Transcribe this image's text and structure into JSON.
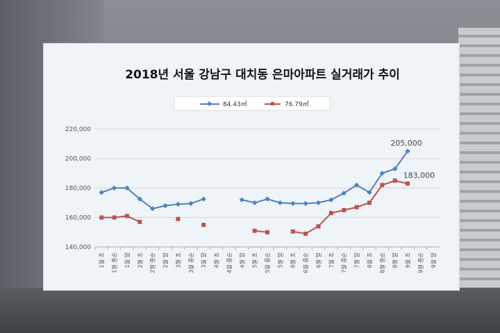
{
  "chart_data": {
    "type": "line",
    "title": "2018년 서울 강남구 대치동 은마아파트 실거래가 추이",
    "xlabel": "",
    "ylabel": "",
    "ylim": [
      140000,
      220000
    ],
    "yticks": [
      "140,000",
      "160,000",
      "180,000",
      "200,000",
      "220,000"
    ],
    "grid": true,
    "legend_position": "top",
    "categories": [
      "1월 초",
      "1월 중순",
      "1월 말",
      "2월 초",
      "2월 중순",
      "2월 말",
      "3월 초",
      "3월 중순",
      "3월 말",
      "4월 초",
      "4월 중순",
      "4월 말",
      "5월 초",
      "5월 중순",
      "5월 말",
      "6월 초",
      "6월 중순",
      "6월 말",
      "7월 초",
      "7월 중순",
      "7월 말",
      "8월 초",
      "8월 중순",
      "8월 말",
      "9월 초",
      "9월 중순",
      "9월 말"
    ],
    "series": [
      {
        "name": "84.43㎡",
        "color": "#4f81bd",
        "marker": "diamond",
        "values": [
          177000,
          180000,
          180000,
          172500,
          166000,
          168000,
          169000,
          169500,
          172500,
          null,
          null,
          172000,
          170000,
          172500,
          170000,
          169500,
          169500,
          170000,
          172000,
          176500,
          182000,
          177000,
          190000,
          193000,
          205000,
          null,
          null
        ]
      },
      {
        "name": "76.79㎡",
        "color": "#c0504d",
        "marker": "square",
        "values": [
          160000,
          160000,
          161000,
          157000,
          null,
          null,
          159000,
          null,
          155000,
          null,
          null,
          null,
          151000,
          150000,
          null,
          150500,
          149000,
          154000,
          163000,
          165000,
          167000,
          170000,
          182000,
          185000,
          183000,
          null,
          null
        ]
      }
    ],
    "data_labels": [
      {
        "series": 0,
        "index": 24,
        "text": "205,000"
      },
      {
        "series": 1,
        "index": 25,
        "text": "183,000"
      }
    ]
  }
}
